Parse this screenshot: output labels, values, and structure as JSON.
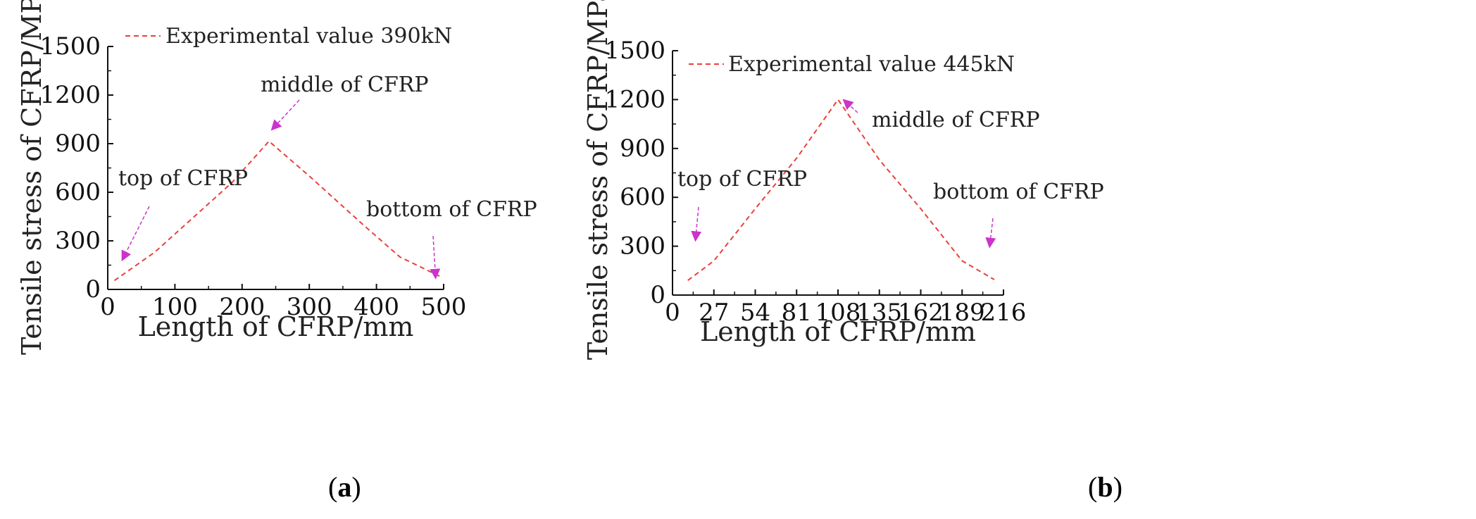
{
  "chart_data": [
    {
      "type": "line",
      "panel": "a",
      "xlabel": "Length of CFRP/mm",
      "ylabel": "Tensile stress of CFRP/MPa",
      "xlim": [
        0,
        500
      ],
      "ylim": [
        0,
        1500
      ],
      "xticks": [
        0,
        100,
        200,
        300,
        400,
        500
      ],
      "yticks": [
        0,
        300,
        600,
        900,
        1200,
        1500
      ],
      "legend": "top-left",
      "series": [
        {
          "name": "Experimental value 390kN",
          "color": "#e8413c",
          "style": "dashed",
          "x": [
            10,
            70,
            185,
            240,
            300,
            380,
            435,
            495
          ],
          "y": [
            55,
            230,
            660,
            915,
            700,
            400,
            200,
            80
          ]
        }
      ],
      "annotations": [
        {
          "text": "top of CFRP",
          "target": [
            22,
            185
          ]
        },
        {
          "text": "middle of CFRP",
          "target": [
            245,
            990
          ]
        },
        {
          "text": "bottom of CFRP",
          "target": [
            488,
            75
          ]
        }
      ]
    },
    {
      "type": "line",
      "panel": "b",
      "xlabel": "Length of CFRP/mm",
      "ylabel": "Tensile stress of CFRP/MPa",
      "xlim": [
        0,
        216
      ],
      "ylim": [
        0,
        1500
      ],
      "xticks": [
        0,
        27,
        54,
        81,
        108,
        135,
        162,
        189,
        216
      ],
      "yticks": [
        0,
        300,
        600,
        900,
        1200,
        1500
      ],
      "legend": "top-left",
      "series": [
        {
          "name": "Experimental value 445kN",
          "color": "#e8413c",
          "style": "dashed",
          "x": [
            10,
            27,
            54,
            81,
            108,
            135,
            162,
            189,
            210
          ],
          "y": [
            90,
            210,
            530,
            840,
            1200,
            830,
            530,
            210,
            95
          ]
        }
      ],
      "annotations": [
        {
          "text": "top of CFRP",
          "target": [
            15,
            340
          ]
        },
        {
          "text": "middle of CFRP",
          "target": [
            112,
            1195
          ]
        },
        {
          "text": "bottom of CFRP",
          "target": [
            207,
            300
          ]
        }
      ]
    }
  ],
  "captions": {
    "a": {
      "paren_open": "(",
      "letter": "a",
      "paren_close": ")"
    },
    "b": {
      "paren_open": "(",
      "letter": "b",
      "paren_close": ")"
    }
  },
  "colors": {
    "arrow": "#cc33cc",
    "axis": "#111111",
    "line": "#e8413c"
  }
}
